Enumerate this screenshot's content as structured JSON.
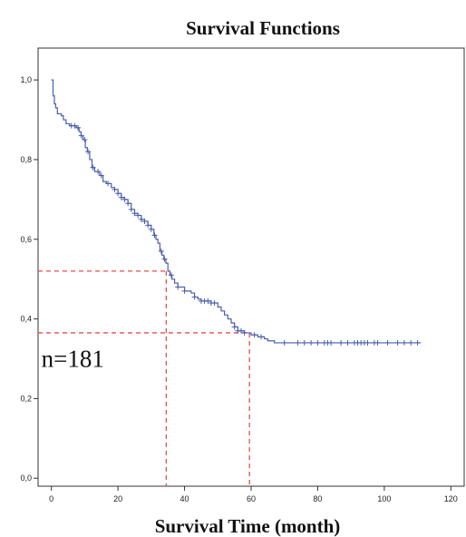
{
  "chart_data": {
    "type": "line",
    "title": "Survival Functions",
    "xlabel": "Survival Time (month)",
    "ylabel": "",
    "xlim": [
      -4,
      124
    ],
    "ylim": [
      -0.02,
      1.08
    ],
    "x_ticks": [
      0,
      20,
      40,
      60,
      80,
      100,
      120
    ],
    "x_tick_labels": [
      "0",
      "20",
      "40",
      "60",
      "80",
      "100",
      "120"
    ],
    "y_ticks": [
      0.0,
      0.2,
      0.4,
      0.6,
      0.8,
      1.0
    ],
    "y_tick_labels": [
      "0,0",
      "0,2",
      "0,4",
      "0,6",
      "0,8",
      "1,0"
    ],
    "grid": false,
    "legend": "none",
    "series": [
      {
        "color": "#4a5eb0",
        "step_points": [
          [
            0,
            1.0
          ],
          [
            0.5,
            0.96
          ],
          [
            0.9,
            0.94
          ],
          [
            1.3,
            0.93
          ],
          [
            1.8,
            0.915
          ],
          [
            3,
            0.91
          ],
          [
            3.6,
            0.9
          ],
          [
            4.4,
            0.89
          ],
          [
            5.5,
            0.885
          ],
          [
            7.5,
            0.88
          ],
          [
            8.3,
            0.87
          ],
          [
            8.9,
            0.86
          ],
          [
            9.5,
            0.85
          ],
          [
            10.2,
            0.83
          ],
          [
            10.8,
            0.82
          ],
          [
            11.5,
            0.8
          ],
          [
            12.2,
            0.78
          ],
          [
            13,
            0.77
          ],
          [
            14.5,
            0.76
          ],
          [
            15.5,
            0.745
          ],
          [
            16.5,
            0.74
          ],
          [
            18,
            0.73
          ],
          [
            19,
            0.725
          ],
          [
            20,
            0.715
          ],
          [
            21,
            0.705
          ],
          [
            22,
            0.7
          ],
          [
            23,
            0.69
          ],
          [
            24,
            0.675
          ],
          [
            25,
            0.665
          ],
          [
            26,
            0.66
          ],
          [
            27,
            0.65
          ],
          [
            28,
            0.645
          ],
          [
            29,
            0.635
          ],
          [
            30,
            0.625
          ],
          [
            30.8,
            0.61
          ],
          [
            31.4,
            0.6
          ],
          [
            32,
            0.59
          ],
          [
            32.6,
            0.57
          ],
          [
            33.2,
            0.56
          ],
          [
            33.8,
            0.55
          ],
          [
            34.4,
            0.54
          ],
          [
            35,
            0.52
          ],
          [
            35.6,
            0.51
          ],
          [
            36.2,
            0.5
          ],
          [
            37,
            0.49
          ],
          [
            38,
            0.48
          ],
          [
            40,
            0.47
          ],
          [
            42,
            0.465
          ],
          [
            43,
            0.455
          ],
          [
            44,
            0.45
          ],
          [
            45,
            0.445
          ],
          [
            48,
            0.44
          ],
          [
            50,
            0.43
          ],
          [
            51,
            0.42
          ],
          [
            52,
            0.41
          ],
          [
            53,
            0.4
          ],
          [
            54,
            0.39
          ],
          [
            55,
            0.38
          ],
          [
            56,
            0.37
          ],
          [
            58,
            0.365
          ],
          [
            60,
            0.36
          ],
          [
            62,
            0.355
          ],
          [
            64,
            0.35
          ],
          [
            65,
            0.345
          ],
          [
            67,
            0.34
          ]
        ],
        "end_x": 111,
        "censor_x": [
          6,
          7,
          8,
          9,
          10,
          11,
          12.5,
          14,
          15,
          17,
          19,
          20,
          21,
          22,
          23,
          24,
          25,
          26,
          27,
          28,
          29,
          30,
          31,
          33,
          34,
          36,
          38,
          40,
          43,
          45,
          46,
          47,
          48,
          49,
          55,
          56,
          57,
          58,
          61,
          63,
          70,
          74,
          76,
          78,
          80,
          82,
          83,
          84,
          87,
          89,
          91,
          92,
          93,
          94,
          95,
          97,
          98,
          101,
          104,
          106,
          108,
          110
        ]
      }
    ],
    "reference_lines": [
      {
        "y": 0.52,
        "x": 34.5
      },
      {
        "y": 0.365,
        "x": 59.5
      }
    ],
    "annotations": [
      {
        "text": "n=181",
        "x": -3,
        "y": 0.28
      }
    ]
  }
}
